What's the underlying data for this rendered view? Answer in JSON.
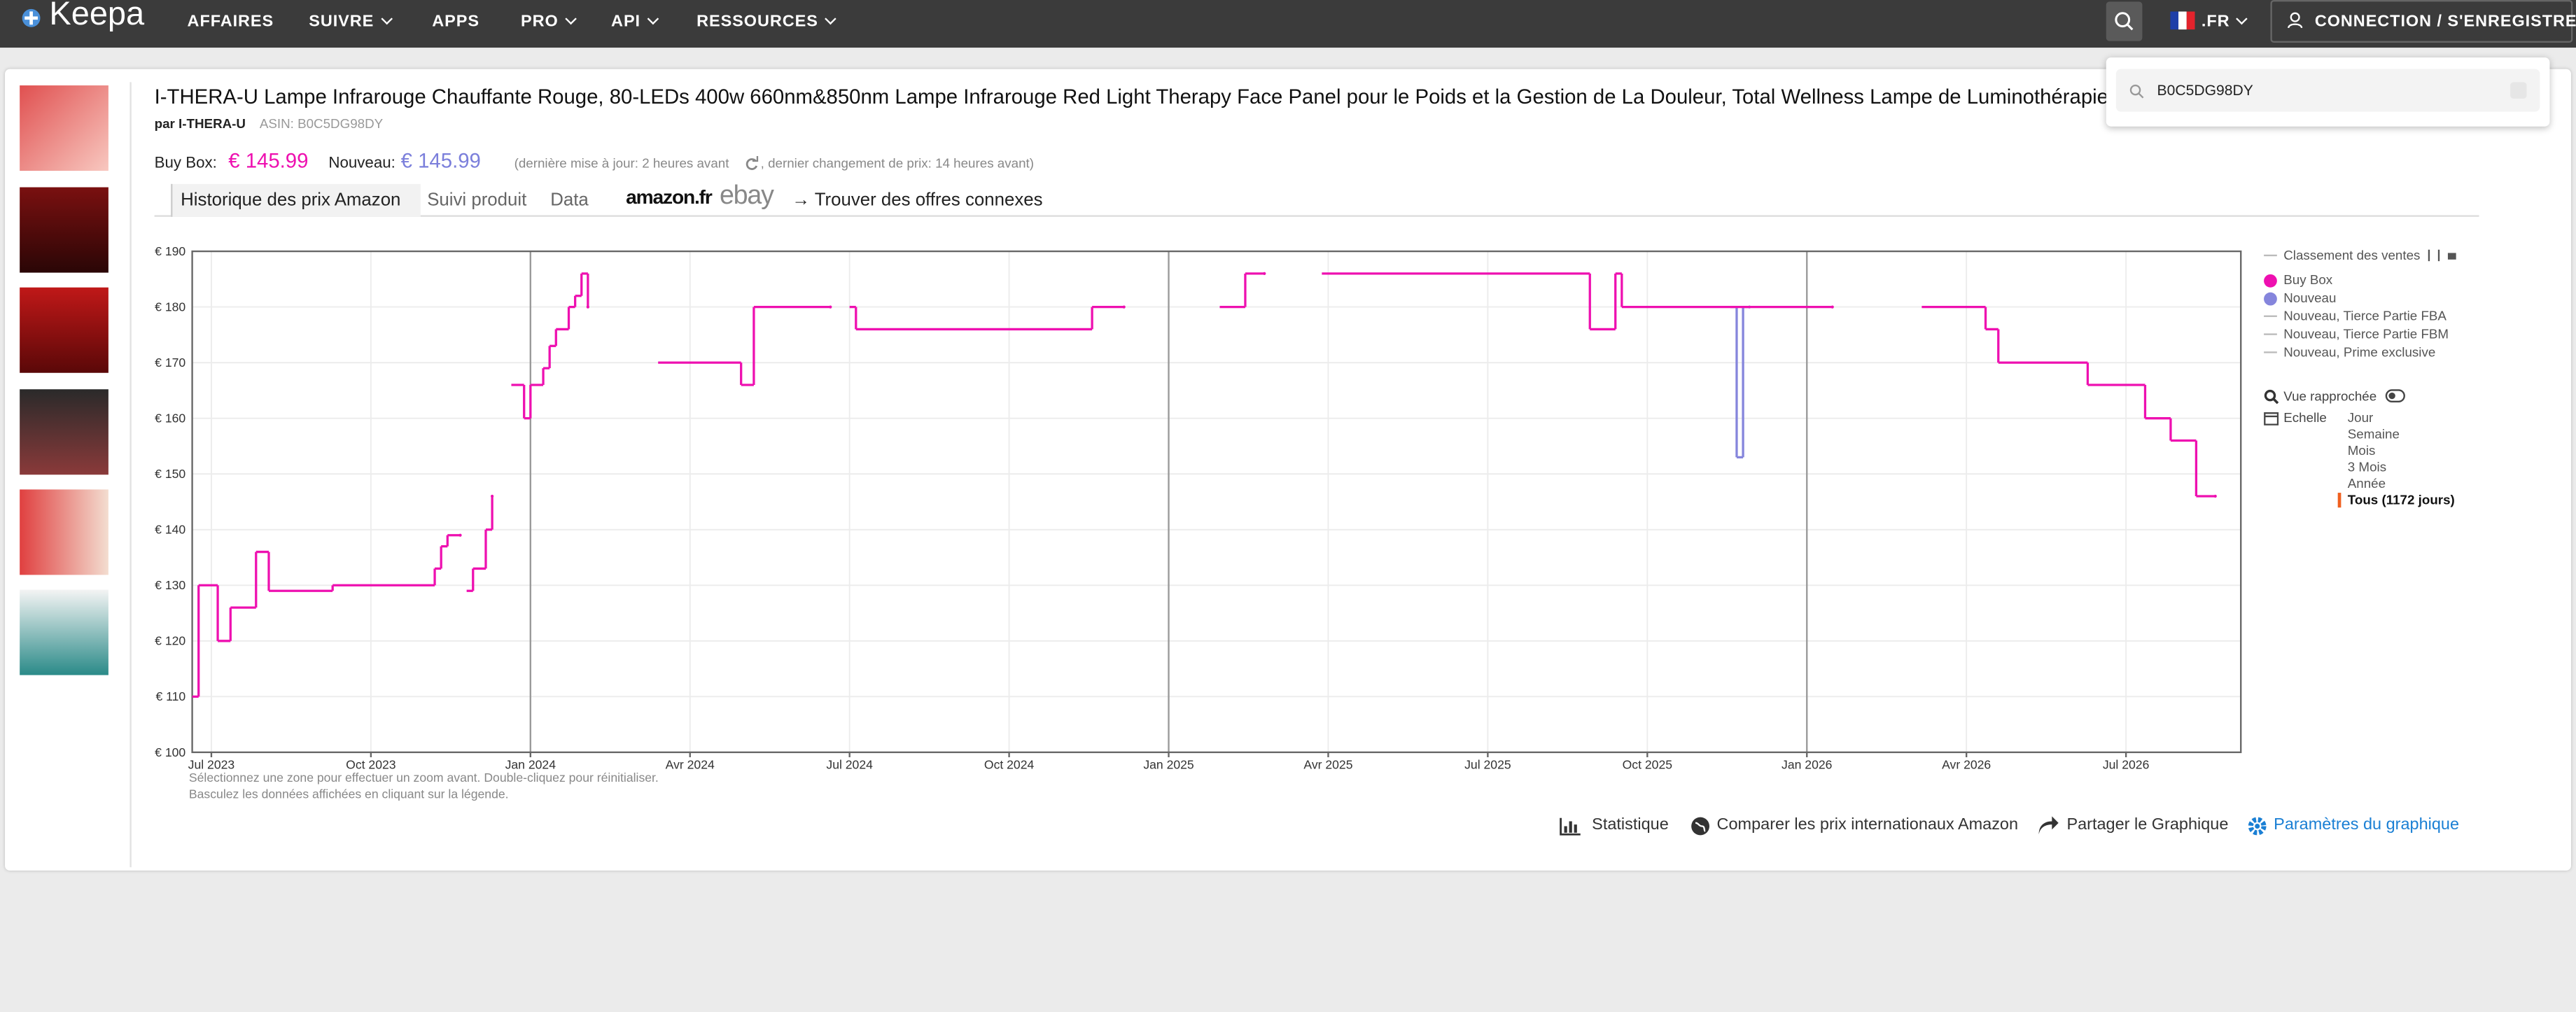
{
  "nav": {
    "logo": "Keepa",
    "items": [
      "AFFAIRES",
      "SUIVRE",
      "APPS",
      "PRO",
      "API",
      "RESSOURCES"
    ],
    "locale": ".FR",
    "login": "CONNECTION / S'ENREGISTRER"
  },
  "search": {
    "query": "B0C5DG98DY"
  },
  "product": {
    "title": "I-THERA-U Lampe Infrarouge Chauffante Rouge, 80-LEDs 400w 660nm&850nm Lampe Infrarouge Red Light Therapy Face Panel pour le Poids et la Gestion de La Douleur, Total Wellness Lampe de Luminothérapie",
    "by": "par I-THERA-U",
    "asin": "ASIN: B0C5DG98DY",
    "buybox_label": "Buy Box:",
    "buybox_price": "€ 145.99",
    "new_label": "Nouveau:",
    "new_price": "€ 145.99",
    "update_note": "(dernière mise à jour: 2 heures avant",
    "change_note": ", dernier changement de prix: 14 heures avant)"
  },
  "tabs": [
    "Historique des prix Amazon",
    "Suivi produit",
    "Data"
  ],
  "marketplaces": [
    "amazon.fr",
    "ebay"
  ],
  "related": "→ Trouver des offres connexes",
  "chart_data": {
    "type": "step-line",
    "xlim": [
      2023.47,
      2026.68
    ],
    "xticks": [
      {
        "value": 2023.5,
        "label": "Jul 2023"
      },
      {
        "value": 2023.75,
        "label": "Oct 2023"
      },
      {
        "value": 2024,
        "label": "Jan 2024"
      },
      {
        "value": 2024.25,
        "label": "Avr 2024"
      },
      {
        "value": 2024.5,
        "label": "Jul 2024"
      },
      {
        "value": 2024.75,
        "label": "Oct 2024"
      },
      {
        "value": 2025,
        "label": "Jan 2025"
      },
      {
        "value": 2025.25,
        "label": "Avr 2025"
      },
      {
        "value": 2025.5,
        "label": "Jul 2025"
      },
      {
        "value": 2025.75,
        "label": "Oct 2025"
      },
      {
        "value": 2026,
        "label": "Jan 2026"
      },
      {
        "value": 2026.25,
        "label": "Avr 2026"
      },
      {
        "value": 2026.5,
        "label": "Jul 2026"
      }
    ],
    "ylim": [
      100,
      190
    ],
    "yticks": [
      {
        "value": 100,
        "label": "€ 100"
      },
      {
        "value": 110,
        "label": "€ 110"
      },
      {
        "value": 120,
        "label": "€ 120"
      },
      {
        "value": 130,
        "label": "€ 130"
      },
      {
        "value": 140,
        "label": "€ 140"
      },
      {
        "value": 150,
        "label": "€ 150"
      },
      {
        "value": 160,
        "label": "€ 160"
      },
      {
        "value": 170,
        "label": "€ 170"
      },
      {
        "value": 180,
        "label": "€ 180"
      },
      {
        "value": 190,
        "label": "€ 190"
      }
    ],
    "grid": true,
    "sales_rank_label": "Classement des ventes",
    "series": [
      {
        "name": "Buy Box",
        "color": "#ee10b0",
        "x": [
          2023.47,
          2023.48,
          2023.51,
          2023.53,
          2023.57,
          2023.59,
          2023.69,
          2023.85,
          2023.86,
          2023.87,
          2023.89,
          null,
          2023.9,
          2023.91,
          2023.93,
          2023.94,
          null,
          2023.97,
          2023.99,
          2024.0,
          2024.02,
          2024.03,
          2024.04,
          2024.06,
          2024.07,
          2024.08,
          2024.09,
          null,
          2024.2,
          2024.33,
          2024.35,
          2024.47,
          null,
          2024.5,
          2024.51,
          2024.88,
          2024.93,
          null,
          2025.08,
          2025.12,
          2025.15,
          null,
          2025.24,
          2025.66,
          2025.7,
          2025.71,
          2026.04,
          null,
          2026.18,
          2026.28,
          2026.3,
          2026.44,
          2026.53,
          2026.57,
          2026.61,
          2026.64
        ],
        "values": [
          110,
          130,
          120,
          126,
          136,
          129,
          130,
          133,
          137,
          139,
          139,
          null,
          129,
          133,
          140,
          146,
          null,
          166,
          160,
          166,
          169,
          173,
          176,
          180,
          182,
          186,
          180,
          null,
          170,
          166,
          180,
          180,
          null,
          180,
          176,
          180,
          180,
          null,
          180,
          186,
          186,
          null,
          186,
          176,
          186,
          180,
          180,
          null,
          180,
          176,
          170,
          166,
          160,
          156,
          146,
          146
        ]
      },
      {
        "name": "Nouveau",
        "color": "#8585dc",
        "x": [
          2025.88,
          2025.89,
          2025.9,
          2025.91
        ],
        "values": [
          180,
          153,
          180,
          180
        ]
      }
    ],
    "legend_more": [
      "Nouveau, Tierce Partie FBA",
      "Nouveau, Tierce Partie FBM",
      "Nouveau, Prime exclusive"
    ]
  },
  "hints": [
    "Sélectionnez une zone pour effectuer un zoom avant. Double-cliquez pour réinitialiser.",
    "Basculez les données affichées en cliquant sur la légende."
  ],
  "controls": {
    "closeup": "Vue rapprochée",
    "scale_label": "Echelle",
    "scale_options": [
      "Jour",
      "Semaine",
      "Mois",
      "3 Mois",
      "Année",
      "Tous (1172 jours)"
    ]
  },
  "actions": [
    "Statistique",
    "Comparer les prix internationaux Amazon",
    "Partager le Graphique",
    "Paramètres du graphique"
  ]
}
